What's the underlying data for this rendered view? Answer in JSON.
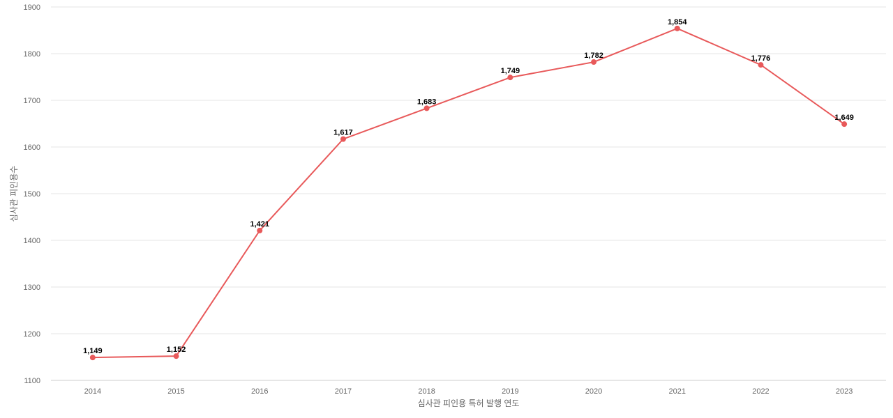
{
  "chart_data": {
    "type": "line",
    "title": "",
    "xlabel": "심사관 피인용 특허 발행 연도",
    "ylabel": "심사관 피인용수",
    "x": [
      "2014",
      "2015",
      "2016",
      "2017",
      "2018",
      "2019",
      "2020",
      "2021",
      "2022",
      "2023"
    ],
    "series": [
      {
        "values": [
          1149,
          1152,
          1421,
          1617,
          1683,
          1749,
          1782,
          1854,
          1776,
          1649
        ],
        "labels": [
          "1,149",
          "1,152",
          "1,421",
          "1,617",
          "1,683",
          "1,749",
          "1,782",
          "1,854",
          "1,776",
          "1,649"
        ]
      }
    ],
    "ylim": [
      1100,
      1900
    ],
    "yticks": [
      "1100",
      "1200",
      "1300",
      "1400",
      "1500",
      "1600",
      "1700",
      "1800",
      "1900"
    ],
    "grid": true,
    "legend": "none",
    "colors": {
      "series": "#e8595a",
      "grid": "#e6e6e6",
      "axis": "#cccccc",
      "tick_text": "#666666",
      "label_text": "#000000"
    }
  }
}
